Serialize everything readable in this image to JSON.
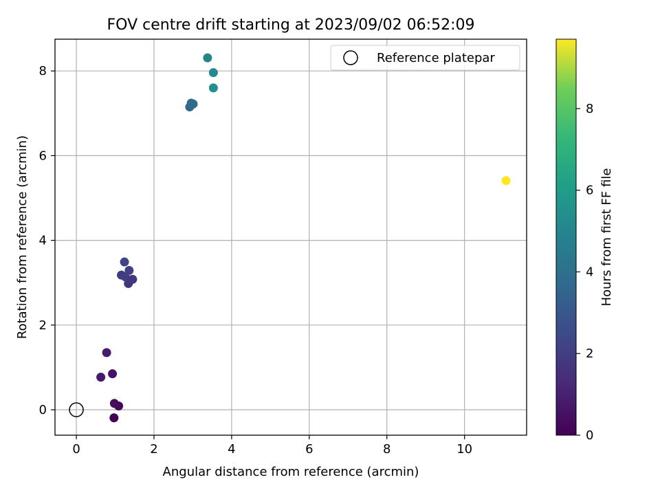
{
  "chart_data": {
    "type": "scatter",
    "title": "FOV centre drift starting at 2023/09/02 06:52:09",
    "xlabel": "Angular distance from reference (arcmin)",
    "ylabel": "Rotation from reference (arcmin)",
    "xlim": [
      -0.55,
      11.6
    ],
    "ylim": [
      -0.6,
      8.75
    ],
    "xticks": [
      0,
      2,
      4,
      6,
      8,
      10
    ],
    "yticks": [
      0,
      2,
      4,
      6,
      8
    ],
    "grid": true,
    "legend_position": "top-right",
    "reference_point": {
      "label": "Reference platepar",
      "x": 0,
      "y": 0
    },
    "colorbar": {
      "label": "Hours from first FF file",
      "range": [
        0,
        9.7
      ],
      "ticks": [
        0,
        2,
        4,
        6,
        8
      ],
      "colormap": "viridis"
    },
    "points": [
      {
        "x": 0.97,
        "y": -0.19,
        "hours": 0.0
      },
      {
        "x": 1.09,
        "y": 0.09,
        "hours": 0.2
      },
      {
        "x": 0.98,
        "y": 0.15,
        "hours": 0.3
      },
      {
        "x": 0.93,
        "y": 0.85,
        "hours": 0.5
      },
      {
        "x": 0.63,
        "y": 0.77,
        "hours": 0.7
      },
      {
        "x": 0.78,
        "y": 1.35,
        "hours": 0.8
      },
      {
        "x": 1.34,
        "y": 2.98,
        "hours": 1.7
      },
      {
        "x": 1.45,
        "y": 3.08,
        "hours": 1.8
      },
      {
        "x": 1.16,
        "y": 3.18,
        "hours": 1.9
      },
      {
        "x": 1.26,
        "y": 3.14,
        "hours": 2.0
      },
      {
        "x": 1.36,
        "y": 3.29,
        "hours": 2.1
      },
      {
        "x": 1.24,
        "y": 3.49,
        "hours": 2.2
      },
      {
        "x": 2.92,
        "y": 7.15,
        "hours": 3.6
      },
      {
        "x": 2.96,
        "y": 7.24,
        "hours": 3.7
      },
      {
        "x": 3.01,
        "y": 7.22,
        "hours": 3.8
      },
      {
        "x": 3.38,
        "y": 8.31,
        "hours": 5.0
      },
      {
        "x": 3.53,
        "y": 7.96,
        "hours": 5.2
      },
      {
        "x": 3.53,
        "y": 7.6,
        "hours": 5.4
      },
      {
        "x": 11.07,
        "y": 5.41,
        "hours": 9.7
      }
    ]
  }
}
